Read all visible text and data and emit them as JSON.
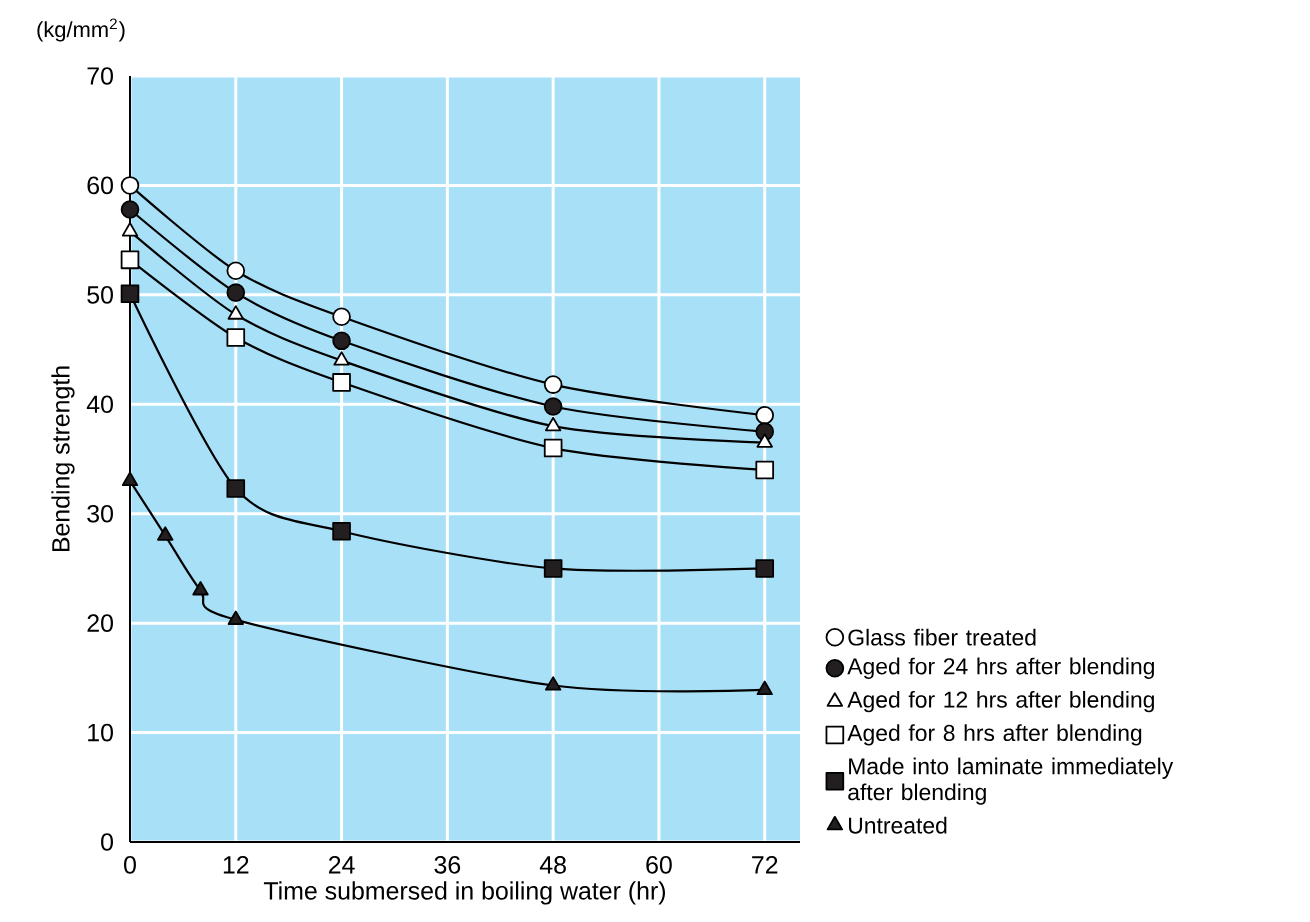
{
  "chart_data": {
    "type": "line",
    "xlabel": "Time submersed in boiling water (hr)",
    "ylabel": "Bending strength",
    "annotations": [
      "(kg/mm$^{2}$)"
    ],
    "xlim": [
      0,
      76
    ],
    "ylim": [
      0,
      70
    ],
    "xticks": [
      0,
      12,
      24,
      36,
      48,
      60,
      72
    ],
    "yticks": [
      0,
      10,
      20,
      30,
      40,
      50,
      60,
      70
    ],
    "grid": true,
    "legend": "right",
    "line_style": "solid",
    "series": [
      {
        "name": "Glass fiber treated",
        "color": "#ffffff",
        "marker": "circle",
        "x": [
          0,
          12,
          24,
          48,
          72
        ],
        "values": [
          60,
          52.2,
          48,
          41.8,
          39
        ]
      },
      {
        "name": "Aged for 24 hrs after blending",
        "color": "#231f20",
        "marker": "circle",
        "x": [
          0,
          12,
          24,
          48,
          72
        ],
        "values": [
          57.8,
          50.2,
          45.8,
          39.8,
          37.5
        ]
      },
      {
        "name": "Aged for 12 hrs after blending",
        "color": "#ffffff",
        "marker": "triangle",
        "x": [
          0,
          12,
          24,
          48,
          72
        ],
        "values": [
          55.8,
          48.2,
          44,
          38,
          36.5
        ]
      },
      {
        "name": "Aged for 8 hrs after blending",
        "color": "#ffffff",
        "marker": "square",
        "x": [
          0,
          12,
          24,
          48,
          72
        ],
        "values": [
          53.2,
          46.1,
          42,
          36,
          34
        ]
      },
      {
        "name": "Made into laminate immediately after blending",
        "color": "#231f20",
        "marker": "square",
        "x": [
          0,
          12,
          24,
          48,
          72
        ],
        "values": [
          50.1,
          32.3,
          28.4,
          25,
          25
        ]
      },
      {
        "name": "Untreated",
        "color": "#231f20",
        "marker": "triangle",
        "x": [
          0,
          4,
          8,
          12,
          48,
          72
        ],
        "values": [
          33,
          28,
          23,
          20.3,
          14.3,
          13.9
        ]
      }
    ]
  }
}
